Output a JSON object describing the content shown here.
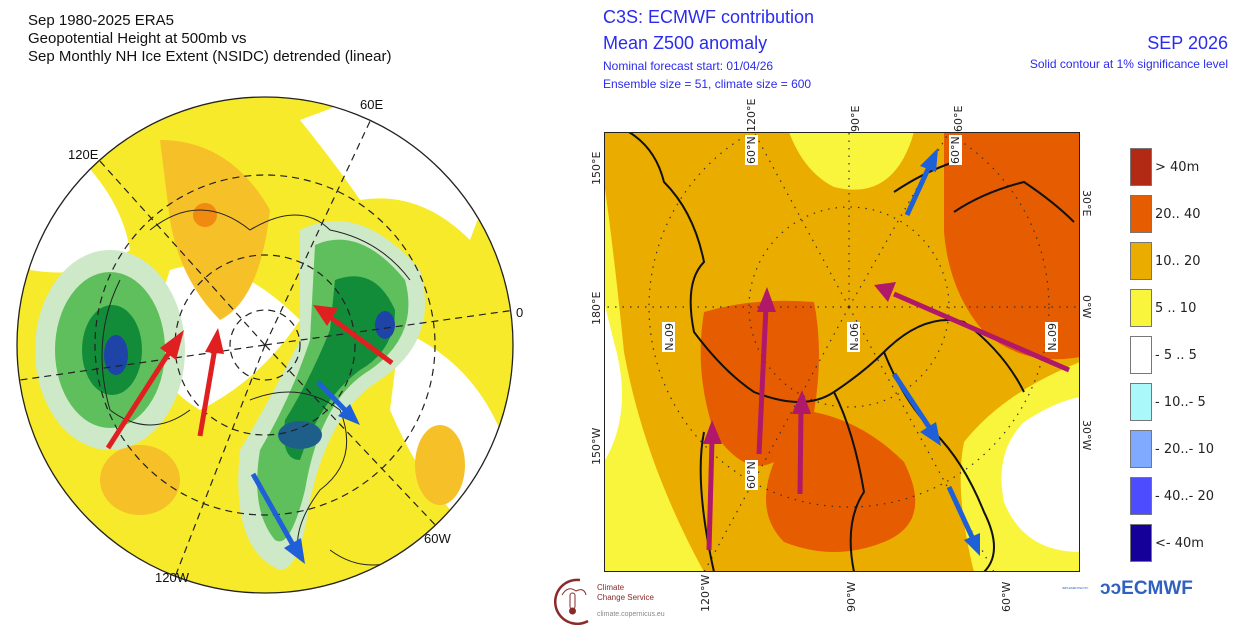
{
  "left_map": {
    "title_lines": [
      "Sep 1980-2025 ERA5",
      "Geopotential Height at 500mb vs",
      "Sep Monthly NH Ice Extent (NSIDC) detrended (linear)"
    ],
    "longitude_labels": {
      "e60": "60E",
      "e120": "120E",
      "zero": "0",
      "w60": "60W",
      "w120": "120W"
    },
    "colors": {
      "positive_fill": "#f7e81c",
      "strong_positive": "#f0a500",
      "negative_fill": "#2ea84a",
      "strong_negative": "#1a3fa8",
      "arrow_red": "#e02020",
      "arrow_blue": "#1f5fd8"
    }
  },
  "right_map": {
    "title": "C3S: ECMWF contribution",
    "subtitle": "Mean Z500 anomaly",
    "forecast_start": "Nominal forecast start: 01/04/26",
    "ensemble": "Ensemble size = 51, climate size = 600",
    "valid_month": "SEP 2026",
    "significance_note": "Solid contour at 1% significance level",
    "top_ticks": {
      "a": "120°E",
      "b": "90°E",
      "c": "60°E"
    },
    "bottom_ticks": {
      "a": "120°W",
      "b": "90°W",
      "c": "60°W"
    },
    "left_ticks": {
      "a": "150°E",
      "b": "180°E",
      "c": "150°W"
    },
    "right_ticks": {
      "a": "30°E",
      "b": "0°W",
      "c": "30°W"
    },
    "lat_labels": {
      "a": "60°N",
      "b": "60°N",
      "c": "90°N",
      "d": "60°N",
      "e": "60°N",
      "f": "60°N"
    },
    "colors": {
      "arrow_magenta": "#b0186a",
      "arrow_blue": "#1f5fd8"
    }
  },
  "legend": [
    {
      "label": ">  40m",
      "color": "#b22a14"
    },
    {
      "label": "20.. 40",
      "color": "#e65c00"
    },
    {
      "label": "10.. 20",
      "color": "#ebac00"
    },
    {
      "label": "5 .. 10",
      "color": "#f9f43c"
    },
    {
      "label": "- 5 .. 5",
      "color": "#ffffff"
    },
    {
      "label": "- 10..- 5",
      "color": "#aaf8fa"
    },
    {
      "label": "- 20..- 10",
      "color": "#80aaff"
    },
    {
      "label": "- 40..- 20",
      "color": "#4d4dff"
    },
    {
      "label": "<- 40m",
      "color": "#16009a"
    }
  ],
  "footer": {
    "c3s_name_line1": "Climate",
    "c3s_name_line2": "Change Service",
    "c3s_url": "climate.copernicus.eu",
    "implemented_by": "IMPLEMENTED BY",
    "ecmwf": "ECMWF"
  }
}
